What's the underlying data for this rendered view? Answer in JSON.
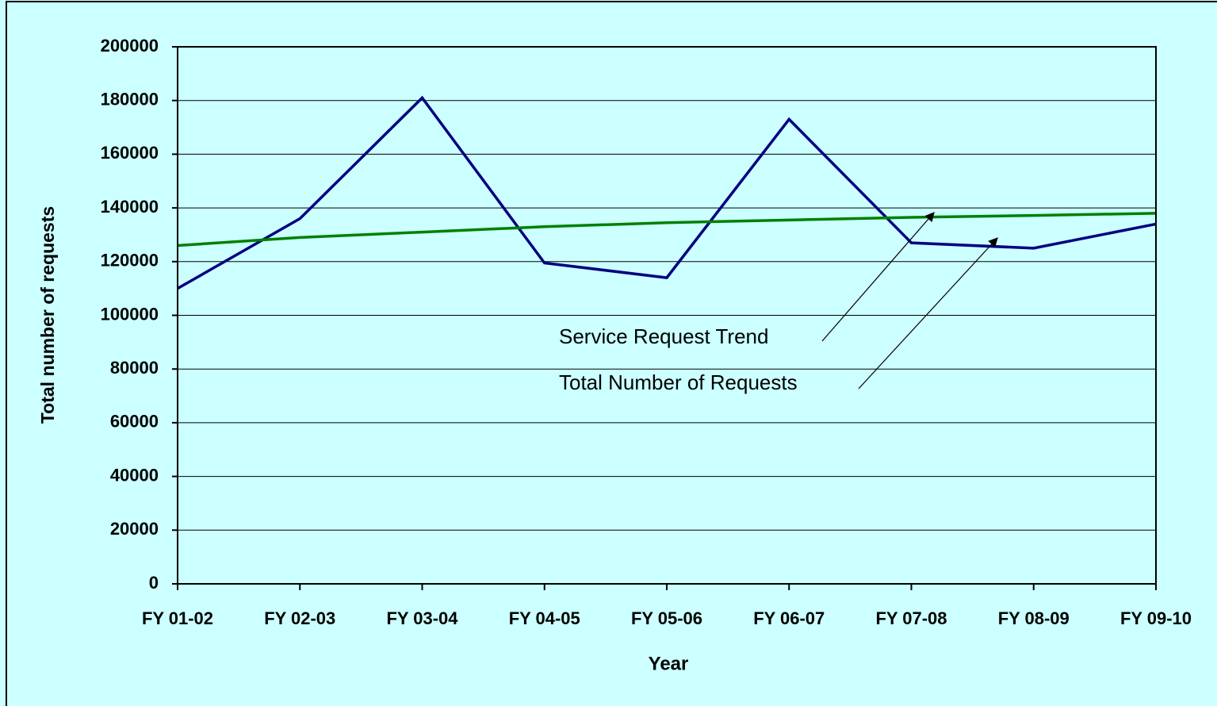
{
  "chart_data": {
    "type": "line",
    "x_label": "Year",
    "y_label": "Total number of requests",
    "categories": [
      "FY 01-02",
      "FY 02-03",
      "FY 03-04",
      "FY 04-05",
      "FY 05-06",
      "FY 06-07",
      "FY 07-08",
      "FY 08-09",
      "FY 09-10"
    ],
    "series": [
      {
        "name": "Total Number of Requests",
        "color": "#000080",
        "values": [
          110000,
          136000,
          181000,
          119500,
          114000,
          173000,
          127000,
          125000,
          134000
        ]
      },
      {
        "name": "Service Request Trend",
        "color": "#008000",
        "values": [
          126000,
          129000,
          131000,
          133000,
          134500,
          135500,
          136500,
          137200,
          138000
        ]
      }
    ],
    "ylim": [
      0,
      200000
    ],
    "yticks": [
      0,
      20000,
      40000,
      60000,
      80000,
      100000,
      120000,
      140000,
      160000,
      180000,
      200000
    ],
    "grid": true,
    "annotations": [
      "Service Request Trend",
      "Total Number of Requests"
    ]
  }
}
